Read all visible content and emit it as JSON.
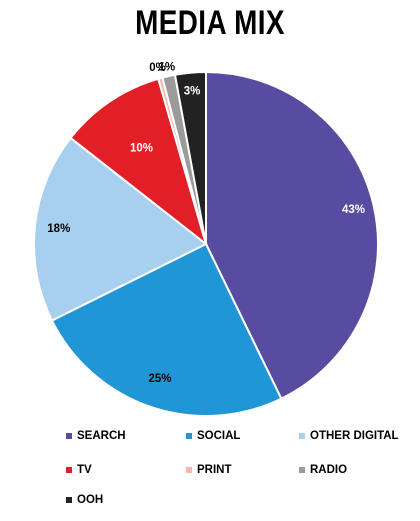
{
  "chart_data": {
    "type": "pie",
    "title": "MEDIA MIX",
    "start_angle_deg": 0,
    "direction": "clockwise",
    "slices": [
      {
        "name": "SEARCH",
        "value": 43,
        "label": "43%",
        "color": "#574c9f",
        "label_color": "#ffffff"
      },
      {
        "name": "SOCIAL",
        "value": 25,
        "label": "25%",
        "color": "#2196d6",
        "label_color": "#000000"
      },
      {
        "name": "OTHER DIGITAL",
        "value": 18,
        "label": "18%",
        "color": "#a7d0ef",
        "label_color": "#000000"
      },
      {
        "name": "TV",
        "value": 10,
        "label": "10%",
        "color": "#e21f26",
        "label_color": "#ffffff"
      },
      {
        "name": "PRINT",
        "value": 0.4,
        "label": "0%",
        "color": "#f5b7b3",
        "label_color": "#000000"
      },
      {
        "name": "RADIO",
        "value": 1.2,
        "label": "1%",
        "color": "#9b9b9b",
        "label_color": "#000000"
      },
      {
        "name": "OOH",
        "value": 2.9,
        "label": "3%",
        "color": "#222222",
        "label_color": "#ffffff"
      }
    ],
    "legend": {
      "position": "bottom",
      "items": [
        "SEARCH",
        "SOCIAL",
        "OTHER DIGITAL",
        "TV",
        "PRINT",
        "RADIO",
        "OOH"
      ]
    }
  }
}
